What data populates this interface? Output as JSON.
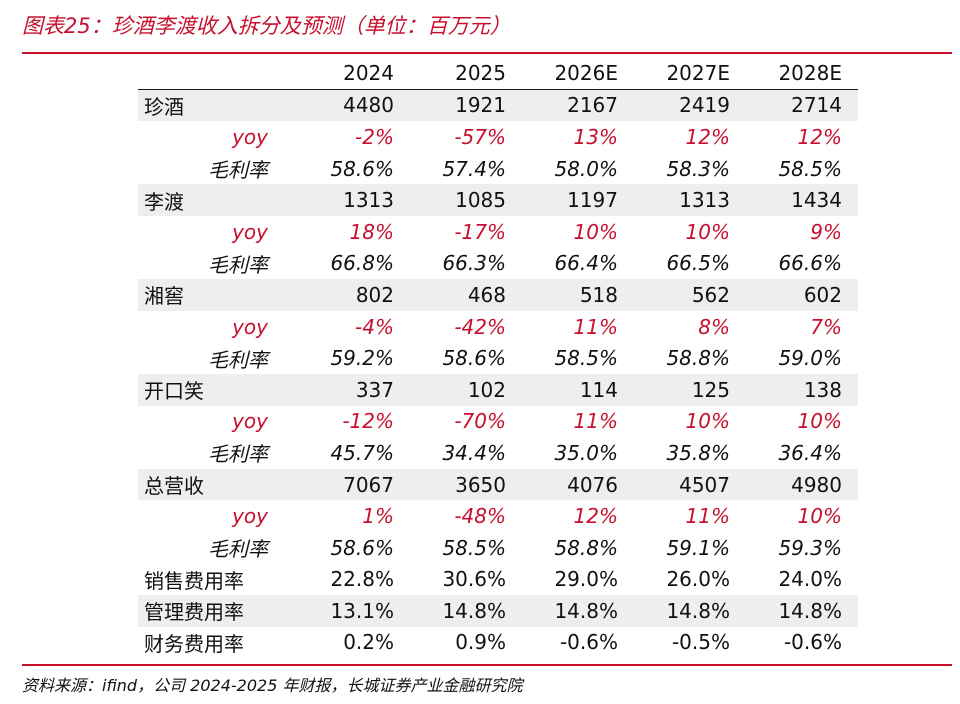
{
  "caption": "图表25：珍酒李渡收入拆分及预测（单位：百万元）",
  "columns": [
    "",
    "2024",
    "2025",
    "2026E",
    "2027E",
    "2028E"
  ],
  "rows": [
    {
      "label": "珍酒",
      "kind": "main",
      "shade": true,
      "values": [
        "4480",
        "1921",
        "2167",
        "2419",
        "2714"
      ]
    },
    {
      "label": "yoy",
      "kind": "yoy",
      "shade": false,
      "values": [
        "-2%",
        "-57%",
        "13%",
        "12%",
        "12%"
      ]
    },
    {
      "label": "毛利率",
      "kind": "margin",
      "shade": false,
      "values": [
        "58.6%",
        "57.4%",
        "58.0%",
        "58.3%",
        "58.5%"
      ]
    },
    {
      "label": "李渡",
      "kind": "main",
      "shade": true,
      "values": [
        "1313",
        "1085",
        "1197",
        "1313",
        "1434"
      ]
    },
    {
      "label": "yoy",
      "kind": "yoy",
      "shade": false,
      "values": [
        "18%",
        "-17%",
        "10%",
        "10%",
        "9%"
      ]
    },
    {
      "label": "毛利率",
      "kind": "margin",
      "shade": false,
      "values": [
        "66.8%",
        "66.3%",
        "66.4%",
        "66.5%",
        "66.6%"
      ]
    },
    {
      "label": "湘窖",
      "kind": "main",
      "shade": true,
      "values": [
        "802",
        "468",
        "518",
        "562",
        "602"
      ]
    },
    {
      "label": "yoy",
      "kind": "yoy",
      "shade": false,
      "values": [
        "-4%",
        "-42%",
        "11%",
        "8%",
        "7%"
      ]
    },
    {
      "label": "毛利率",
      "kind": "margin",
      "shade": false,
      "values": [
        "59.2%",
        "58.6%",
        "58.5%",
        "58.8%",
        "59.0%"
      ]
    },
    {
      "label": "开口笑",
      "kind": "main",
      "shade": true,
      "values": [
        "337",
        "102",
        "114",
        "125",
        "138"
      ]
    },
    {
      "label": "yoy",
      "kind": "yoy",
      "shade": false,
      "values": [
        "-12%",
        "-70%",
        "11%",
        "10%",
        "10%"
      ]
    },
    {
      "label": "毛利率",
      "kind": "margin",
      "shade": false,
      "values": [
        "45.7%",
        "34.4%",
        "35.0%",
        "35.8%",
        "36.4%"
      ]
    },
    {
      "label": "总营收",
      "kind": "main",
      "shade": true,
      "values": [
        "7067",
        "3650",
        "4076",
        "4507",
        "4980"
      ]
    },
    {
      "label": "yoy",
      "kind": "yoy",
      "shade": false,
      "values": [
        "1%",
        "-48%",
        "12%",
        "11%",
        "10%"
      ]
    },
    {
      "label": "毛利率",
      "kind": "margin",
      "shade": false,
      "values": [
        "58.6%",
        "58.5%",
        "58.8%",
        "59.1%",
        "59.3%"
      ]
    },
    {
      "label": "销售费用率",
      "kind": "main",
      "shade": false,
      "values": [
        "22.8%",
        "30.6%",
        "29.0%",
        "26.0%",
        "24.0%"
      ]
    },
    {
      "label": "管理费用率",
      "kind": "main",
      "shade": true,
      "values": [
        "13.1%",
        "14.8%",
        "14.8%",
        "14.8%",
        "14.8%"
      ]
    },
    {
      "label": "财务费用率",
      "kind": "main",
      "shade": false,
      "values": [
        "0.2%",
        "0.9%",
        "-0.6%",
        "-0.5%",
        "-0.6%"
      ]
    }
  ],
  "source": "资料来源：ifind，公司 2024-2025 年财报，长城证券产业金融研究院",
  "colors": {
    "accent": "#c8102e",
    "shade": "#eeeeee"
  }
}
